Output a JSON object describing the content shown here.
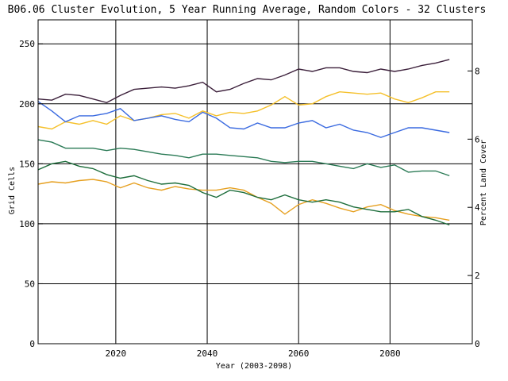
{
  "chart_data": {
    "type": "line",
    "title": "B06.06 Cluster Evolution, 5 Year Running Average, Random Colors - 32 Clusters",
    "xlabel": "Year (2003-2098)",
    "ylabel": "Grid Cells",
    "y2label": "Percent Land Cover",
    "xlim": [
      2003,
      2098
    ],
    "ylim": [
      0,
      270
    ],
    "y2lim": [
      0,
      9.5
    ],
    "x_ticks": [
      "2020",
      "2040",
      "2060",
      "2080"
    ],
    "y_ticks": [
      "0",
      "50",
      "100",
      "150",
      "200",
      "250"
    ],
    "y2_ticks": [
      "0",
      "2",
      "4",
      "6",
      "8"
    ],
    "grid": true,
    "x": [
      2003,
      2006,
      2009,
      2012,
      2015,
      2018,
      2021,
      2024,
      2027,
      2030,
      2033,
      2036,
      2039,
      2042,
      2045,
      2048,
      2051,
      2054,
      2057,
      2060,
      2063,
      2066,
      2069,
      2072,
      2075,
      2078,
      2081,
      2084,
      2087,
      2090,
      2093
    ],
    "series": [
      {
        "color": "#3b1f3a",
        "values": [
          204,
          203,
          208,
          207,
          204,
          201,
          207,
          212,
          213,
          214,
          213,
          215,
          218,
          210,
          212,
          217,
          221,
          220,
          224,
          229,
          227,
          230,
          230,
          227,
          226,
          229,
          227,
          229,
          232,
          234,
          237
        ]
      },
      {
        "color": "#f5c02a",
        "values": [
          181,
          179,
          185,
          183,
          186,
          183,
          190,
          186,
          188,
          191,
          192,
          188,
          194,
          190,
          193,
          192,
          194,
          199,
          206,
          199,
          200,
          206,
          210,
          209,
          208,
          209,
          204,
          201,
          205,
          210,
          210
        ]
      },
      {
        "color": "#3a6ae0",
        "values": [
          202,
          194,
          185,
          190,
          190,
          192,
          196,
          186,
          188,
          190,
          187,
          185,
          193,
          188,
          180,
          179,
          184,
          180,
          180,
          184,
          186,
          180,
          183,
          178,
          176,
          172,
          176,
          180,
          180,
          178,
          176
        ]
      },
      {
        "color": "#2a7a55",
        "values": [
          170,
          168,
          163,
          163,
          163,
          161,
          163,
          162,
          160,
          158,
          157,
          155,
          158,
          158,
          157,
          156,
          155,
          152,
          151,
          152,
          152,
          150,
          148,
          146,
          150,
          147,
          149,
          143,
          144,
          144,
          140
        ]
      },
      {
        "color": "#e6a020",
        "values": [
          133,
          135,
          134,
          136,
          137,
          135,
          130,
          134,
          130,
          128,
          131,
          129,
          128,
          128,
          130,
          128,
          122,
          117,
          108,
          116,
          120,
          117,
          113,
          110,
          114,
          116,
          111,
          108,
          106,
          105,
          103
        ]
      },
      {
        "color": "#1e6e3c",
        "values": [
          145,
          150,
          152,
          148,
          146,
          141,
          138,
          140,
          136,
          133,
          134,
          132,
          126,
          122,
          128,
          126,
          122,
          120,
          124,
          120,
          118,
          120,
          118,
          114,
          112,
          110,
          110,
          112,
          106,
          103,
          99
        ]
      }
    ]
  }
}
